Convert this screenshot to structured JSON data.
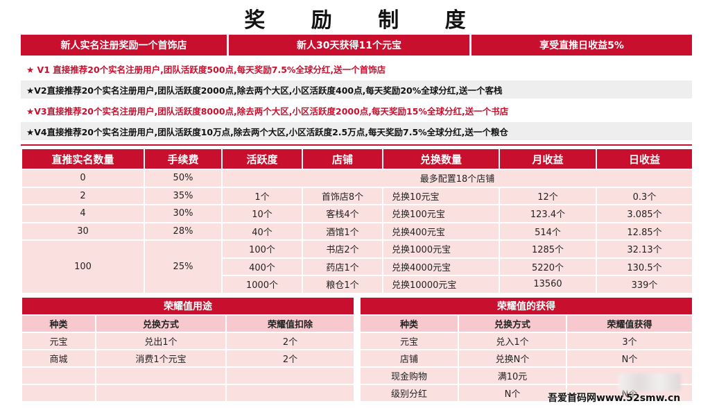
{
  "title": "奖 励 制 度",
  "header_bar": [
    "新人实名注册奖励一个首饰店",
    "新人30天获得11个元宝",
    "享受直推日收益5%"
  ],
  "levels": [
    "★ V1 直接推荐20个实名注册用户,团队活跃度500点,每天奖励7.5%全球分红,送一个首饰店",
    "★V2直接推荐20个实名注册用户,团队活跃度2000点,除去两个大区,小区活跃度400点,每天奖励20%全球分红,送一个客栈",
    "★V3直接推荐20个实名注册用户,团队活跃度8000点,除去两个大区,小区活跃度2000点,每天奖励15%全球分红,送一个书店",
    "★V4直接推荐20个实名注册用户,团队活跃度10万点,除去两个大区,小区活跃度2.5万点,每天奖励7.5%全球分红,送一个粮仓"
  ],
  "main_table": {
    "headers": [
      "直推实名数量",
      "手续费",
      "活跃度",
      "店铺",
      "兑换数量",
      "月收益",
      "日收益"
    ],
    "row0": [
      "0",
      "50%",
      "最多配置18个店铺"
    ],
    "row1": [
      "2",
      "35%",
      "1个",
      "首饰店8个",
      "兑换10元宝",
      "12个",
      "0.3个"
    ],
    "row2": [
      "4",
      "30%",
      "10个",
      "客栈4个",
      "兑换100元宝",
      "123.4个",
      "3.085个"
    ],
    "row3": [
      "30",
      "28%",
      "40个",
      "酒馆1个",
      "兑换400元宝",
      "514个",
      "12.85个"
    ],
    "group_count": "100",
    "group_fee": "25%",
    "group_rows": [
      [
        "100个",
        "书店2个",
        "兑换1000元宝",
        "1285个",
        "32.13个"
      ],
      [
        "400个",
        "药店1个",
        "兑换4000元宝",
        "5220个",
        "130.5个"
      ],
      [
        "1000个",
        "粮仓1个",
        "兑换10000元宝",
        "13560",
        "339个"
      ]
    ]
  },
  "honor_use": {
    "caption": "荣耀值用途",
    "headers": [
      "种类",
      "兑换方式",
      "荣耀值扣除"
    ],
    "rows": [
      [
        "元宝",
        "兑出1个",
        "2个"
      ],
      [
        "商城",
        "消费1个元宝",
        "2个"
      ],
      [
        "",
        "",
        ""
      ],
      [
        "",
        "",
        ""
      ]
    ]
  },
  "honor_get": {
    "caption": "荣耀值的获得",
    "headers": [
      "种类",
      "兑换方式",
      "荣耀值获得"
    ],
    "rows": [
      [
        "元宝",
        "兑入1个",
        "3个"
      ],
      [
        "店铺",
        "兑换N个",
        "N个"
      ],
      [
        "现金购物",
        "满10元",
        ""
      ],
      [
        "级别分红",
        "N个",
        "N个"
      ]
    ]
  },
  "watermark": "吾爱首码网www.52smw.cn",
  "colors": {
    "accent": "#c8102e",
    "row_bg": "#fbe0e0",
    "sub_header_bg": "#f7c9cf"
  }
}
